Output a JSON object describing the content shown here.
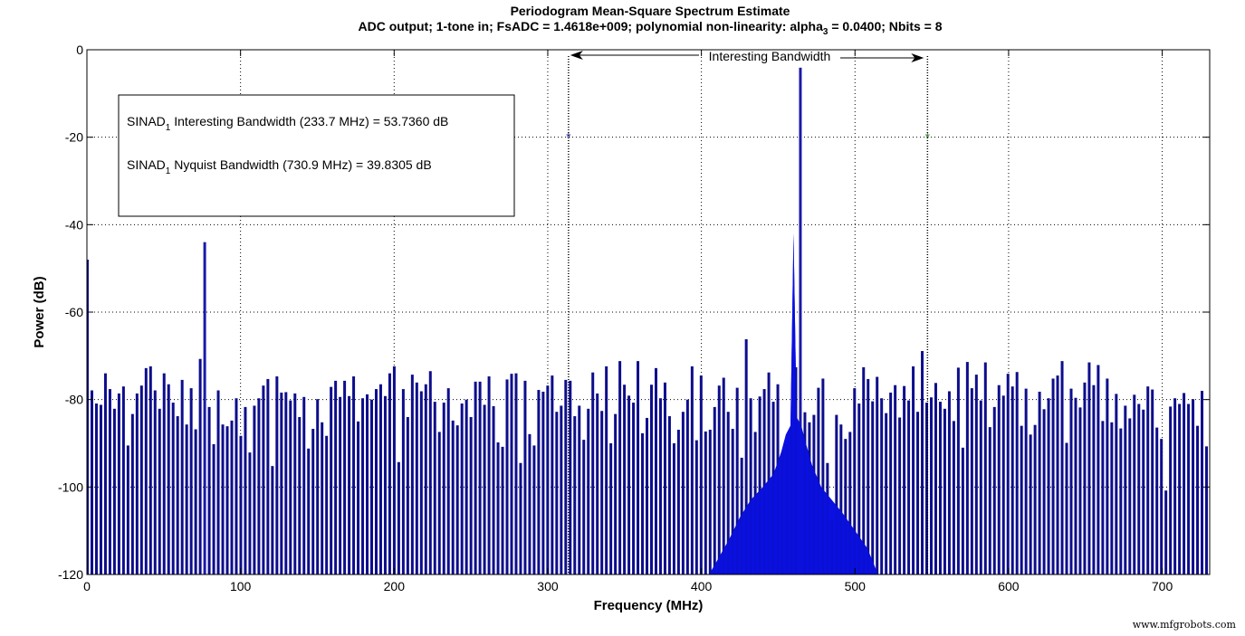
{
  "chart_data": {
    "type": "bar",
    "title": "Periodogram Mean-Square Spectrum Estimate",
    "subtitle": "ADC output; 1-tone in; FsADC = 1.4618e+009; polynomial non-linearity: alpha",
    "subtitle_sub": "3",
    "subtitle_tail": " =  0.0400; Nbits =  8",
    "xlabel": "Frequency (MHz)",
    "ylabel": "Power (dB)",
    "xlim": [
      0,
      730.9
    ],
    "ylim": [
      -120,
      0
    ],
    "xticks": [
      0,
      100,
      200,
      300,
      400,
      500,
      600,
      700
    ],
    "yticks": [
      0,
      -20,
      -40,
      -60,
      -80,
      -100,
      -120
    ],
    "grid": true,
    "bar_color": "#0d0d8c",
    "envelope_color": "#0a10e0",
    "bar_spacing_mhz": 2.94,
    "dc_bin": {
      "x": 0.5,
      "value": -48
    },
    "signal_tone": {
      "x": 460,
      "value": -4.1
    },
    "harmonic_spur": {
      "x": 76.5,
      "value": -44
    },
    "values": [
      -77.9,
      -80.9,
      -81.2,
      -74.0,
      -77.6,
      -82.1,
      -78.6,
      -77.0,
      -90.5,
      -83.3,
      -78.6,
      -76.8,
      -72.8,
      -72.4,
      -77.9,
      -82.1,
      -74.0,
      -76.5,
      -80.7,
      -83.8,
      -75.5,
      -85.7,
      -77.4,
      -86.8,
      -70.7,
      -44.0,
      -81.7,
      -90.2,
      -77.9,
      -85.7,
      -86.1,
      -84.8,
      -79.7,
      -88.3,
      -81.7,
      -92.1,
      -81.4,
      -79.7,
      -76.8,
      -75.3,
      -95.2,
      -74.7,
      -78.4,
      -78.3,
      -80.2,
      -78.6,
      -84.0,
      -79.4,
      -91.2,
      -86.7,
      -79.9,
      -85.2,
      -88.3,
      -77.1,
      -75.7,
      -79.4,
      -75.7,
      -79.2,
      -74.7,
      -85.0,
      -79.7,
      -78.8,
      -80.0,
      -77.6,
      -76.5,
      -79.2,
      -74.0,
      -72.4,
      -94.3,
      -77.6,
      -84.0,
      -74.3,
      -76.1,
      -78.1,
      -76.5,
      -73.5,
      -80.5,
      -87.4,
      -80.7,
      -77.4,
      -84.8,
      -85.9,
      -80.9,
      -80.0,
      -84.0,
      -75.9,
      -75.9,
      -81.2,
      -74.7,
      -81.5,
      -89.8,
      -90.8,
      -75.4,
      -74.1,
      -74.0,
      -94.5,
      -75.7,
      -87.9,
      -90.5,
      -77.8,
      -78.2,
      -76.8,
      -74.5,
      -82.8,
      -81.4,
      -75.5,
      -75.7,
      -83.8,
      -81.4,
      -89.2,
      -82.1,
      -73.8,
      -78.6,
      -82.6,
      -72.4,
      -90.0,
      -83.3,
      -71.2,
      -76.6,
      -79.1,
      -80.7,
      -71.2,
      -87.7,
      -84.2,
      -76.6,
      -72.8,
      -79.7,
      -76.1,
      -83.8,
      -90.0,
      -86.9,
      -82.8,
      -80.0,
      -72.4,
      -89.3,
      -74.5,
      -87.3,
      -86.9,
      -81.7,
      -76.8,
      -75.0,
      -82.8,
      -86.7,
      -77.3,
      -93.3,
      -66.2,
      -79.7,
      -87.4,
      -79.3,
      -77.6,
      -73.8,
      -80.5,
      -76.5,
      -92.1,
      -90.2,
      -86.4,
      -72.6,
      -4.1,
      -82.9,
      -85.2,
      -83.5,
      -77.3,
      -75.2,
      -94.5,
      -107.6,
      -83.5,
      -85.7,
      -89.0,
      -87.4,
      -77.4,
      -80.9,
      -72.6,
      -75.3,
      -80.4,
      -74.8,
      -79.7,
      -83.1,
      -78.4,
      -76.7,
      -84.1,
      -76.9,
      -80.2,
      -72.4,
      -82.8,
      -68.9,
      -80.7,
      -79.5,
      -76.2,
      -80.5,
      -82.1,
      -78.1,
      -84.9,
      -72.7,
      -91.0,
      -71.4,
      -77.4,
      -74.3,
      -80.2,
      -71.5,
      -86.3,
      -81.7,
      -76.7,
      -79.1,
      -74.1,
      -77.0,
      -73.7,
      -86.0,
      -77.5,
      -88.0,
      -85.8,
      -78.2,
      -82.2,
      -79.7,
      -75.2,
      -74.5,
      -71.2,
      -89.9,
      -77.5,
      -79.6,
      -81.8,
      -76.1,
      -71.5,
      -76.7,
      -72.1,
      -84.9,
      -75.2,
      -85.2,
      -78.7,
      -86.6,
      -81.4,
      -84.3,
      -78.9,
      -81.0,
      -82.3,
      -77.0,
      -77.7,
      -86.4,
      -89.0,
      -100.8,
      -81.6,
      -79.7,
      -81.0,
      -78.5,
      -81.0,
      -79.9,
      -86.0,
      -78.0,
      -90.7
    ],
    "envelope": {
      "description": "bright-blue filled skirt around signal tone",
      "points": [
        [
          405,
          -120
        ],
        [
          410,
          -117
        ],
        [
          418,
          -112
        ],
        [
          425,
          -107
        ],
        [
          432,
          -103
        ],
        [
          440,
          -100
        ],
        [
          447,
          -97
        ],
        [
          452,
          -92
        ],
        [
          455,
          -88
        ],
        [
          458,
          -86
        ],
        [
          460,
          -42
        ],
        [
          462,
          -84
        ],
        [
          465,
          -86
        ],
        [
          468,
          -90
        ],
        [
          472,
          -95
        ],
        [
          478,
          -100
        ],
        [
          485,
          -103
        ],
        [
          492,
          -106
        ],
        [
          500,
          -110
        ],
        [
          508,
          -114
        ],
        [
          515,
          -120
        ]
      ]
    },
    "annotations": {
      "interesting_bandwidth_label": "Interesting Bandwidth",
      "bw_start_mhz": 313.5,
      "bw_end_mhz": 547.2,
      "marker_level_db": -20,
      "marker_start_color": "#1a1a8c",
      "marker_end_color": "#2a7a2a"
    },
    "textbox": {
      "line1_prefix": "SINAD",
      "line1_sub": "1",
      "line1_text": " Interesting Bandwidth (233.7 MHz) =  53.7360  dB",
      "line2_prefix": "SINAD",
      "line2_sub": "1",
      "line2_text": " Nyquist Bandwidth (730.9 MHz) = 39.8305 dB"
    }
  },
  "watermark": "www.mfgrobots.com"
}
